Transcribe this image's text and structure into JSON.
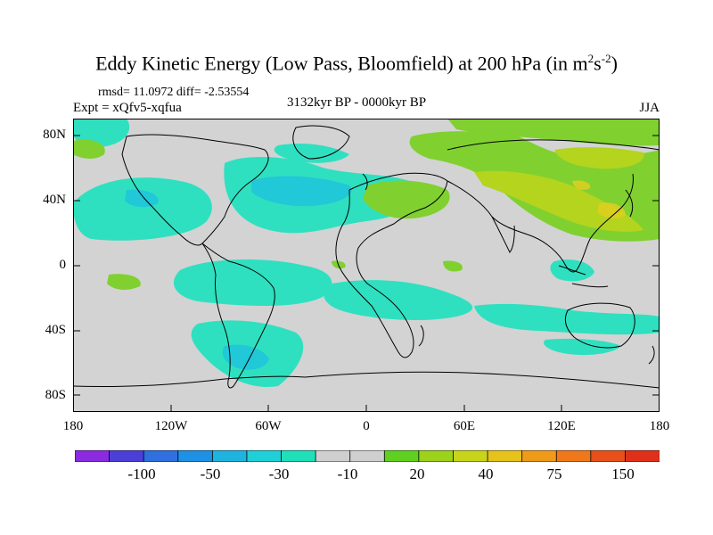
{
  "title": {
    "main": "Eddy Kinetic Energy (Low Pass, Bloomfield) at 200 hPa (in m",
    "sup1": "2",
    "mid": "s",
    "sup2": "-2",
    "end": ")"
  },
  "stats": "rmsd= 11.0972 diff= -2.53554",
  "experiment": "Expt = xQfv5-xqfua",
  "period": "3132kyr BP - 0000kyr BP",
  "season": "JJA",
  "lat_labels": [
    "80N",
    "40N",
    "0",
    "40S",
    "80S"
  ],
  "lon_labels": [
    "180",
    "120W",
    "60W",
    "0",
    "60E",
    "120E",
    "180"
  ],
  "colorbar": {
    "labels": [
      "-100",
      "-50",
      "-30",
      "-10",
      "20",
      "40",
      "75",
      "150"
    ],
    "colors": [
      "#8a2be2",
      "#4b3fd8",
      "#2f6fe0",
      "#1e90e6",
      "#1fb3e0",
      "#1fd0d8",
      "#1fe0b8",
      "#cfcfcf",
      "#cfcfcf",
      "#5fd020",
      "#9cd21a",
      "#c8d41a",
      "#e6c21a",
      "#f09a1a",
      "#f0781a",
      "#e8501a",
      "#e0301a"
    ]
  },
  "colors": {
    "ocean_base": "#d3d3d3",
    "neg_light": "#2fe0c0",
    "neg_mid": "#20c8d8",
    "pos_light": "#80d030",
    "pos_mid": "#b4d41e",
    "pos_high": "#e0cf20"
  }
}
